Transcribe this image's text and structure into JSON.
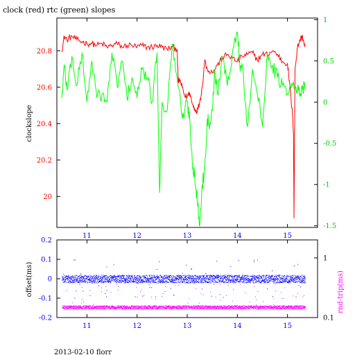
{
  "page": {
    "title": "clock (red) rtc (green) slopes",
    "footer": "2013-02-10 florr"
  },
  "chart_data": [
    {
      "type": "line",
      "title": "clock (red) rtc (green) slopes",
      "ylabel": "clockslope",
      "x_ticks": [
        "11",
        "12",
        "13",
        "14",
        "15"
      ],
      "xlim": [
        10.4,
        15.6
      ],
      "y_left_ticks": [
        "20",
        "20.2",
        "20.4",
        "20.6",
        "20.8"
      ],
      "y_left_lim": [
        19.83,
        20.98
      ],
      "y_right_ticks": [
        "-1.5",
        "-1",
        "-0.5",
        "0",
        "0.5",
        "1"
      ],
      "y_right_lim": [
        -1.52,
        1.02
      ],
      "series": [
        {
          "color": "#ff0000",
          "axis": "left",
          "x": [
            10.5,
            10.55,
            10.6,
            10.7,
            10.8,
            10.9,
            11.0,
            11.1,
            11.2,
            11.3,
            11.4,
            11.5,
            11.6,
            11.7,
            11.8,
            11.9,
            12.0,
            12.1,
            12.2,
            12.3,
            12.4,
            12.5,
            12.6,
            12.7,
            12.8,
            12.82,
            12.85,
            12.9,
            12.95,
            13.0,
            13.05,
            13.1,
            13.15,
            13.2,
            13.25,
            13.3,
            13.35,
            13.4,
            13.5,
            13.6,
            13.7,
            13.8,
            13.9,
            14.0,
            14.1,
            14.2,
            14.3,
            14.4,
            14.5,
            14.6,
            14.7,
            14.8,
            14.9,
            15.0,
            15.05,
            15.1,
            15.12,
            15.13,
            15.15,
            15.2,
            15.25,
            15.3,
            15.35
          ],
          "y": [
            20.8,
            20.88,
            20.86,
            20.88,
            20.86,
            20.85,
            20.84,
            20.84,
            20.83,
            20.84,
            20.82,
            20.83,
            20.84,
            20.82,
            20.83,
            20.83,
            20.82,
            20.83,
            20.82,
            20.82,
            20.83,
            20.82,
            20.81,
            20.82,
            20.81,
            20.63,
            20.64,
            20.6,
            20.55,
            20.55,
            20.57,
            20.51,
            20.48,
            20.47,
            20.52,
            20.6,
            20.75,
            20.7,
            20.68,
            20.72,
            20.76,
            20.78,
            20.76,
            20.74,
            20.77,
            20.78,
            20.79,
            20.75,
            20.78,
            20.78,
            20.8,
            20.78,
            20.74,
            20.73,
            20.6,
            20.45,
            20.35,
            19.88,
            20.7,
            20.82,
            20.86,
            20.88,
            20.82
          ]
        },
        {
          "color": "#00ff00",
          "axis": "right",
          "x": [
            10.5,
            10.55,
            10.6,
            10.7,
            10.8,
            10.9,
            11.0,
            11.1,
            11.2,
            11.3,
            11.4,
            11.5,
            11.6,
            11.7,
            11.8,
            11.9,
            12.0,
            12.1,
            12.2,
            12.3,
            12.4,
            12.45,
            12.5,
            12.6,
            12.7,
            12.8,
            12.9,
            13.0,
            13.05,
            13.1,
            13.15,
            13.2,
            13.25,
            13.3,
            13.35,
            13.4,
            13.45,
            13.5,
            13.55,
            13.6,
            13.7,
            13.8,
            13.9,
            14.0,
            14.05,
            14.1,
            14.2,
            14.3,
            14.4,
            14.5,
            14.6,
            14.7,
            14.8,
            14.9,
            15.0,
            15.1,
            15.2,
            15.25,
            15.3,
            15.35
          ],
          "y": [
            0.05,
            0.45,
            0.15,
            0.55,
            0.2,
            0.6,
            0.0,
            0.5,
            0.05,
            0.1,
            0.0,
            0.6,
            0.2,
            0.5,
            0.05,
            0.3,
            0.05,
            0.4,
            0.3,
            0.0,
            0.6,
            -1.1,
            0.0,
            -0.1,
            0.7,
            0.3,
            -0.2,
            0.0,
            -0.2,
            -0.7,
            -0.9,
            -1.2,
            -1.5,
            -1.0,
            -0.8,
            -0.2,
            -0.25,
            -0.1,
            0.4,
            0.1,
            0.55,
            0.2,
            0.6,
            0.85,
            0.45,
            0.45,
            -0.3,
            0.4,
            0.1,
            -0.3,
            0.6,
            0.45,
            0.3,
            0.2,
            0.1,
            0.2,
            0.15,
            0.1,
            0.2,
            0.15
          ]
        }
      ]
    },
    {
      "type": "scatter",
      "ylabel": "offset(ms)",
      "ylabel_right": "rnd-trip(ms)",
      "x_ticks": [
        "11",
        "12",
        "13",
        "14",
        "15"
      ],
      "xlim": [
        10.4,
        15.6
      ],
      "y_left_ticks": [
        "-0.2",
        "-0.1",
        "0",
        "0.1",
        "0.2"
      ],
      "y_left_lim": [
        -0.2,
        0.2
      ],
      "y_right_ticks": [
        "0.1",
        "1"
      ],
      "y_right_lim": [
        0.1,
        2.0
      ],
      "y_right_scale": "log",
      "series": [
        {
          "color": "#0000ff",
          "axis": "left",
          "x_range": [
            10.5,
            15.35
          ],
          "center": 0.0,
          "spread": 0.02
        },
        {
          "color": "#ff00ff",
          "axis": "right",
          "x_range": [
            10.5,
            15.35
          ],
          "center": 0.15,
          "spread": 0.01
        }
      ]
    }
  ]
}
